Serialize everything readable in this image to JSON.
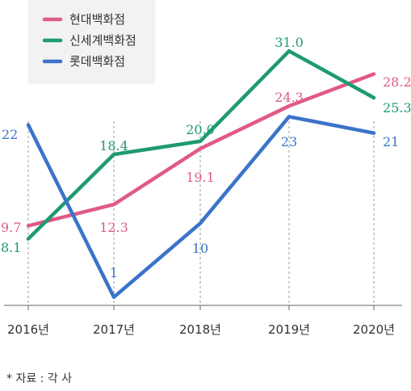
{
  "chart_data": {
    "type": "line",
    "categories": [
      "2016년",
      "2017년",
      "2018년",
      "2019년",
      "2020년"
    ],
    "series": [
      {
        "name": "현대백화점",
        "color": "#e05a84",
        "values": [
          9.7,
          12.3,
          19.1,
          24.3,
          28.2
        ],
        "labels": [
          "9.7",
          "12.3",
          "19.1",
          "24.3",
          "28.2"
        ]
      },
      {
        "name": "신세계백화점",
        "color": "#1e9a74",
        "values": [
          8.1,
          18.4,
          20.0,
          31.0,
          25.3
        ],
        "labels": [
          "8.1",
          "18.4",
          "20.0",
          "31.0",
          "25.3"
        ]
      },
      {
        "name": "롯데백화점",
        "color": "#3b73c9",
        "values": [
          22,
          1,
          10,
          23,
          21
        ],
        "labels": [
          "22",
          "1",
          "10",
          "23",
          "21"
        ]
      }
    ],
    "ylim": [
      0,
      32
    ],
    "grid": "vertical-dashed",
    "legend_position": "top-left"
  },
  "footer": {
    "source": "* 자료 : 각 사"
  }
}
